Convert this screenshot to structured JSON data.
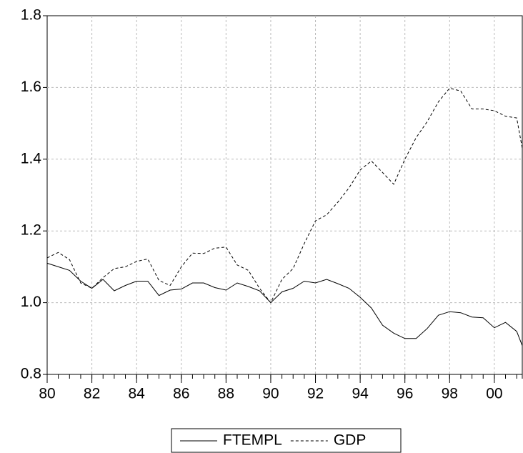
{
  "chart_data": {
    "type": "line",
    "x": [
      1980,
      1980.5,
      1981,
      1981.5,
      1982,
      1982.5,
      1983,
      1983.5,
      1984,
      1984.5,
      1985,
      1985.5,
      1986,
      1986.5,
      1987,
      1987.5,
      1988,
      1988.5,
      1989,
      1989.5,
      1990,
      1990.5,
      1991,
      1991.5,
      1992,
      1992.5,
      1993,
      1993.5,
      1994,
      1994.5,
      1995,
      1995.5,
      1996,
      1996.5,
      1997,
      1997.5,
      1998,
      1998.5,
      1999,
      1999.5,
      2000,
      2000.5,
      2001,
      2001.25
    ],
    "series": [
      {
        "name": "FTEMPL",
        "color": "#000000",
        "dash": "solid",
        "values": [
          1.11,
          1.1,
          1.09,
          1.06,
          1.04,
          1.065,
          1.033,
          1.048,
          1.06,
          1.06,
          1.02,
          1.035,
          1.038,
          1.055,
          1.055,
          1.042,
          1.035,
          1.055,
          1.045,
          1.033,
          1.0,
          1.03,
          1.04,
          1.06,
          1.055,
          1.065,
          1.053,
          1.04,
          1.015,
          0.985,
          0.937,
          0.915,
          0.9,
          0.9,
          0.928,
          0.965,
          0.975,
          0.972,
          0.96,
          0.958,
          0.93,
          0.945,
          0.92,
          0.88
        ]
      },
      {
        "name": "GDP",
        "color": "#000000",
        "dash": "dashed",
        "values": [
          1.125,
          1.14,
          1.12,
          1.055,
          1.04,
          1.07,
          1.095,
          1.1,
          1.115,
          1.122,
          1.062,
          1.048,
          1.1,
          1.138,
          1.137,
          1.152,
          1.155,
          1.105,
          1.09,
          1.04,
          1.0,
          1.065,
          1.095,
          1.165,
          1.228,
          1.245,
          1.28,
          1.32,
          1.37,
          1.395,
          1.363,
          1.33,
          1.4,
          1.46,
          1.505,
          1.56,
          1.598,
          1.59,
          1.54,
          1.54,
          1.535,
          1.52,
          1.515,
          1.43
        ]
      }
    ],
    "xlim": [
      1980,
      2001.25
    ],
    "xticks": [
      {
        "value": 1980,
        "label": "80"
      },
      {
        "value": 1982,
        "label": "82"
      },
      {
        "value": 1984,
        "label": "84"
      },
      {
        "value": 1986,
        "label": "86"
      },
      {
        "value": 1988,
        "label": "88"
      },
      {
        "value": 1990,
        "label": "90"
      },
      {
        "value": 1992,
        "label": "92"
      },
      {
        "value": 1994,
        "label": "94"
      },
      {
        "value": 1996,
        "label": "96"
      },
      {
        "value": 1998,
        "label": "98"
      },
      {
        "value": 2000,
        "label": "00"
      }
    ],
    "ylim": [
      0.8,
      1.8
    ],
    "yticks": [
      0.8,
      {
        "value": 1.0,
        "label": "1.0"
      },
      1.2,
      1.4,
      1.6,
      1.8
    ],
    "grid": true,
    "legend": "bottom"
  }
}
